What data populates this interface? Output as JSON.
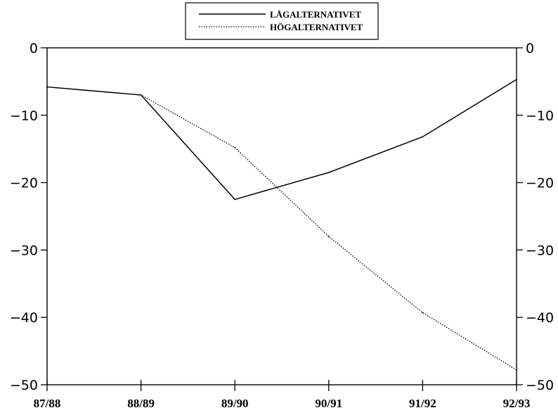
{
  "chart_data": {
    "type": "line",
    "categories": [
      "87/88",
      "88/89",
      "89/90",
      "90/91",
      "91/92",
      "92/93"
    ],
    "series": [
      {
        "name": "LÅGALTERNATIVET",
        "style": "solid",
        "color": "#000000",
        "values": [
          -5.8,
          -7.0,
          -22.5,
          -18.5,
          -13.2,
          -4.7
        ]
      },
      {
        "name": "HÖGALTERNATIVET",
        "style": "dotted",
        "color": "#000000",
        "values": [
          -5.8,
          -7.0,
          -14.8,
          -28.0,
          -39.3,
          -47.8
        ]
      }
    ],
    "ylim": [
      -50,
      0
    ],
    "yticks": [
      0,
      -10,
      -20,
      -30,
      -40,
      -50
    ],
    "ytick_labels": [
      "0",
      "−10",
      "−20",
      "−30",
      "−40",
      "−50"
    ],
    "grid": false,
    "legend_position": "top-center",
    "title": "",
    "xlabel": "",
    "ylabel": ""
  }
}
